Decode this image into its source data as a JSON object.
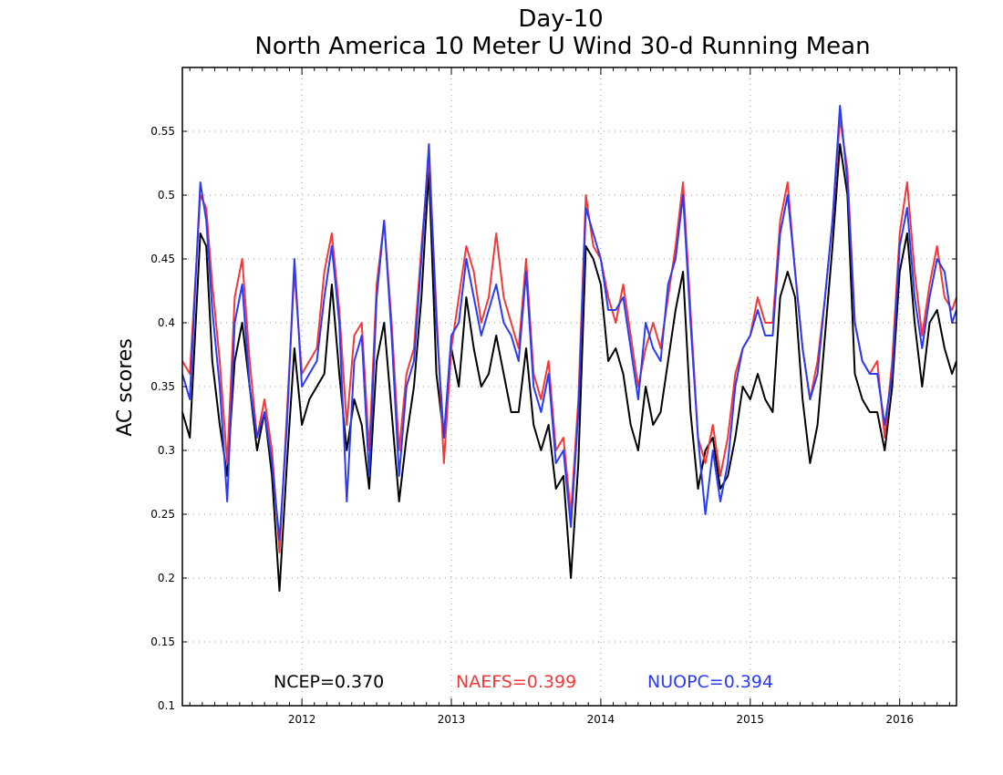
{
  "chart_data": {
    "type": "line",
    "title": "Day-10",
    "subtitle": "North America 10 Meter U Wind 30-d Running Mean",
    "xlabel": "",
    "ylabel": "AC scores",
    "xlim": [
      2011.2,
      2016.38
    ],
    "ylim": [
      0.1,
      0.6
    ],
    "x_ticks": [
      2012,
      2013,
      2014,
      2015,
      2016
    ],
    "x_tick_labels": [
      "2012",
      "2013",
      "2014",
      "2015",
      "2016"
    ],
    "y_ticks": [
      0.1,
      0.15,
      0.2,
      0.25,
      0.3,
      0.35,
      0.4,
      0.45,
      0.5,
      0.55
    ],
    "y_tick_labels": [
      "0.1",
      "0.15",
      "0.2",
      "0.25",
      "0.3",
      "0.35",
      "0.4",
      "0.45",
      "0.5",
      "0.55"
    ],
    "grid": true,
    "legend_position": "bottom-inside",
    "x": [
      2011.2,
      2011.25,
      2011.32,
      2011.36,
      2011.4,
      2011.45,
      2011.5,
      2011.55,
      2011.6,
      2011.65,
      2011.7,
      2011.75,
      2011.8,
      2011.85,
      2011.9,
      2011.95,
      2012.0,
      2012.05,
      2012.1,
      2012.15,
      2012.2,
      2012.25,
      2012.3,
      2012.35,
      2012.4,
      2012.45,
      2012.5,
      2012.55,
      2012.6,
      2012.65,
      2012.7,
      2012.75,
      2012.8,
      2012.85,
      2012.9,
      2012.95,
      2013.0,
      2013.05,
      2013.1,
      2013.15,
      2013.2,
      2013.25,
      2013.3,
      2013.35,
      2013.4,
      2013.45,
      2013.5,
      2013.55,
      2013.6,
      2013.65,
      2013.7,
      2013.75,
      2013.8,
      2013.85,
      2013.9,
      2013.95,
      2014.0,
      2014.05,
      2014.1,
      2014.15,
      2014.2,
      2014.25,
      2014.3,
      2014.35,
      2014.4,
      2014.45,
      2014.5,
      2014.55,
      2014.6,
      2014.65,
      2014.7,
      2014.75,
      2014.8,
      2014.85,
      2014.9,
      2014.95,
      2015.0,
      2015.05,
      2015.1,
      2015.15,
      2015.2,
      2015.25,
      2015.3,
      2015.35,
      2015.4,
      2015.45,
      2015.5,
      2015.55,
      2015.6,
      2015.65,
      2015.7,
      2015.75,
      2015.8,
      2015.85,
      2015.9,
      2015.95,
      2016.0,
      2016.05,
      2016.1,
      2016.15,
      2016.2,
      2016.25,
      2016.3,
      2016.35,
      2016.38
    ],
    "series": [
      {
        "name": "NCEP",
        "color": "#000000",
        "values": [
          0.33,
          0.31,
          0.47,
          0.46,
          0.37,
          0.32,
          0.28,
          0.37,
          0.4,
          0.35,
          0.3,
          0.33,
          0.28,
          0.19,
          0.29,
          0.38,
          0.32,
          0.34,
          0.35,
          0.36,
          0.43,
          0.36,
          0.3,
          0.34,
          0.32,
          0.27,
          0.37,
          0.4,
          0.33,
          0.26,
          0.31,
          0.35,
          0.42,
          0.52,
          0.36,
          0.31,
          0.38,
          0.35,
          0.42,
          0.38,
          0.35,
          0.36,
          0.39,
          0.36,
          0.33,
          0.33,
          0.38,
          0.32,
          0.3,
          0.32,
          0.27,
          0.28,
          0.2,
          0.29,
          0.46,
          0.45,
          0.43,
          0.37,
          0.38,
          0.36,
          0.32,
          0.3,
          0.35,
          0.32,
          0.33,
          0.37,
          0.41,
          0.44,
          0.33,
          0.27,
          0.3,
          0.31,
          0.27,
          0.28,
          0.31,
          0.35,
          0.34,
          0.36,
          0.34,
          0.33,
          0.42,
          0.44,
          0.42,
          0.34,
          0.29,
          0.32,
          0.39,
          0.46,
          0.54,
          0.5,
          0.36,
          0.34,
          0.33,
          0.33,
          0.3,
          0.35,
          0.44,
          0.47,
          0.4,
          0.35,
          0.4,
          0.41,
          0.38,
          0.36,
          0.37
        ]
      },
      {
        "name": "NAEFS",
        "color": "#f23838",
        "values": [
          0.37,
          0.36,
          0.5,
          0.49,
          0.43,
          0.37,
          0.29,
          0.42,
          0.45,
          0.37,
          0.31,
          0.34,
          0.3,
          0.22,
          0.33,
          0.44,
          0.36,
          0.37,
          0.38,
          0.44,
          0.47,
          0.41,
          0.32,
          0.39,
          0.4,
          0.3,
          0.43,
          0.48,
          0.4,
          0.3,
          0.36,
          0.38,
          0.46,
          0.53,
          0.41,
          0.29,
          0.38,
          0.42,
          0.46,
          0.44,
          0.4,
          0.42,
          0.47,
          0.42,
          0.4,
          0.38,
          0.45,
          0.36,
          0.34,
          0.37,
          0.3,
          0.31,
          0.25,
          0.34,
          0.5,
          0.46,
          0.45,
          0.42,
          0.4,
          0.43,
          0.39,
          0.35,
          0.38,
          0.4,
          0.38,
          0.42,
          0.46,
          0.51,
          0.41,
          0.31,
          0.29,
          0.32,
          0.28,
          0.31,
          0.36,
          0.38,
          0.39,
          0.42,
          0.4,
          0.4,
          0.48,
          0.51,
          0.44,
          0.38,
          0.34,
          0.37,
          0.42,
          0.48,
          0.56,
          0.52,
          0.4,
          0.37,
          0.36,
          0.37,
          0.31,
          0.37,
          0.47,
          0.51,
          0.44,
          0.39,
          0.43,
          0.46,
          0.42,
          0.41,
          0.42
        ]
      },
      {
        "name": "NUOPC",
        "color": "#2a3bf5",
        "values": [
          0.36,
          0.34,
          0.51,
          0.48,
          0.41,
          0.35,
          0.26,
          0.4,
          0.43,
          0.35,
          0.31,
          0.33,
          0.29,
          0.23,
          0.32,
          0.45,
          0.35,
          0.36,
          0.37,
          0.42,
          0.46,
          0.4,
          0.26,
          0.37,
          0.39,
          0.28,
          0.42,
          0.48,
          0.39,
          0.28,
          0.35,
          0.37,
          0.45,
          0.54,
          0.4,
          0.31,
          0.39,
          0.4,
          0.45,
          0.42,
          0.39,
          0.41,
          0.43,
          0.4,
          0.39,
          0.37,
          0.44,
          0.35,
          0.33,
          0.36,
          0.29,
          0.3,
          0.24,
          0.33,
          0.49,
          0.47,
          0.45,
          0.41,
          0.41,
          0.42,
          0.38,
          0.34,
          0.4,
          0.38,
          0.37,
          0.43,
          0.45,
          0.5,
          0.4,
          0.31,
          0.25,
          0.3,
          0.26,
          0.29,
          0.35,
          0.38,
          0.39,
          0.41,
          0.39,
          0.39,
          0.47,
          0.5,
          0.44,
          0.38,
          0.34,
          0.36,
          0.42,
          0.48,
          0.57,
          0.51,
          0.4,
          0.37,
          0.36,
          0.36,
          0.32,
          0.36,
          0.46,
          0.49,
          0.42,
          0.38,
          0.42,
          0.45,
          0.44,
          0.4,
          0.41
        ]
      }
    ],
    "legend": [
      {
        "label": "NCEP=0.370",
        "color": "#000000"
      },
      {
        "label": "NAEFS=0.399",
        "color": "#f23838"
      },
      {
        "label": "NUOPC=0.394",
        "color": "#2a3bf5"
      }
    ]
  }
}
